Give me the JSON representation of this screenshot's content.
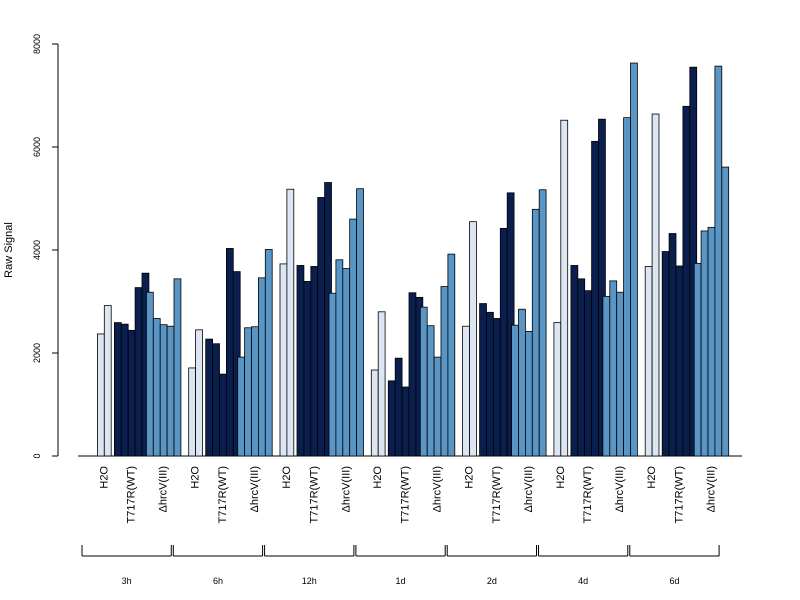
{
  "chart_data": {
    "type": "bar",
    "ylabel": "Raw Signal",
    "ylim": [
      0,
      8000
    ],
    "yticks": [
      0,
      2000,
      4000,
      6000,
      8000
    ],
    "grid": false,
    "conditions": [
      "H2O",
      "T717R(WT)",
      "ΔhrcV(III)"
    ],
    "colors": {
      "H2O": "#dce6f2",
      "T717R(WT)": "#0a1f4e",
      "ΔhrcV(III)": "#5a96c5"
    },
    "timepoints": [
      {
        "label": "3h",
        "groups": [
          {
            "condition": "H2O",
            "values": [
              2370,
              2920
            ]
          },
          {
            "condition": "T717R(WT)",
            "values": [
              2590,
              2560,
              2440,
              3270,
              3550
            ]
          },
          {
            "condition": "ΔhrcV(III)",
            "values": [
              3180,
              2670,
              2550,
              2520,
              3440
            ]
          }
        ]
      },
      {
        "label": "6h",
        "groups": [
          {
            "condition": "H2O",
            "values": [
              1710,
              2450
            ]
          },
          {
            "condition": "T717R(WT)",
            "values": [
              2270,
              2180,
              1590,
              4030,
              3580
            ]
          },
          {
            "condition": "ΔhrcV(III)",
            "values": [
              1920,
              2490,
              2510,
              3460,
              4010
            ]
          }
        ]
      },
      {
        "label": "12h",
        "groups": [
          {
            "condition": "H2O",
            "values": [
              3730,
              5180
            ]
          },
          {
            "condition": "T717R(WT)",
            "values": [
              3700,
              3390,
              3680,
              5020,
              5310
            ]
          },
          {
            "condition": "ΔhrcV(III)",
            "values": [
              3160,
              3810,
              3640,
              4600,
              5190
            ]
          }
        ]
      },
      {
        "label": "1d",
        "groups": [
          {
            "condition": "H2O",
            "values": [
              1670,
              2800
            ]
          },
          {
            "condition": "T717R(WT)",
            "values": [
              1460,
              1900,
              1340,
              3170,
              3080
            ]
          },
          {
            "condition": "ΔhrcV(III)",
            "values": [
              2890,
              2530,
              1920,
              3290,
              3920
            ]
          }
        ]
      },
      {
        "label": "2d",
        "groups": [
          {
            "condition": "H2O",
            "values": [
              2520,
              4550
            ]
          },
          {
            "condition": "T717R(WT)",
            "values": [
              2960,
              2790,
              2670,
              4420,
              5110
            ]
          },
          {
            "condition": "ΔhrcV(III)",
            "values": [
              2540,
              2850,
              2420,
              4790,
              5170
            ]
          }
        ]
      },
      {
        "label": "4d",
        "groups": [
          {
            "condition": "H2O",
            "values": [
              2590,
              6520
            ]
          },
          {
            "condition": "T717R(WT)",
            "values": [
              3700,
              3440,
              3210,
              6110,
              6540
            ]
          },
          {
            "condition": "ΔhrcV(III)",
            "values": [
              3100,
              3400,
              3180,
              6570,
              7630
            ]
          }
        ]
      },
      {
        "label": "6d",
        "groups": [
          {
            "condition": "H2O",
            "values": [
              3680,
              6640
            ]
          },
          {
            "condition": "T717R(WT)",
            "values": [
              3970,
              4320,
              3690,
              6790,
              7550
            ]
          },
          {
            "condition": "ΔhrcV(III)",
            "values": [
              3740,
              4370,
              4440,
              7570,
              5610
            ]
          }
        ]
      }
    ]
  }
}
